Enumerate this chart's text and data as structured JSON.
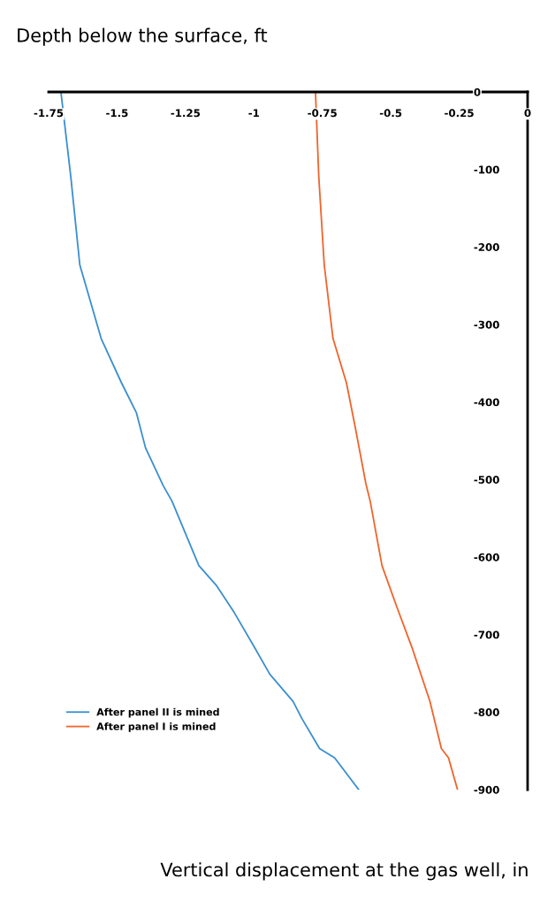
{
  "chart_data": {
    "type": "line",
    "xlabel": "Vertical displacement at the gas well, in",
    "ylabel": "Depth below the surface, ft",
    "xlim": [
      -1.75,
      0
    ],
    "xticks": [
      -1.75,
      -1.5,
      -1.25,
      -1,
      -0.75,
      -0.5,
      -0.25,
      0
    ],
    "ylim": [
      -900,
      0
    ],
    "yticks": [
      0,
      -100,
      -200,
      -300,
      -400,
      -500,
      -600,
      -700,
      -800,
      -900
    ],
    "grid": false,
    "legend": "bottom left",
    "marker": "none",
    "line_style": "solid",
    "series": [
      {
        "name": "After panel II is mined",
        "color": "#3a8fd0",
        "x": [
          -1.705,
          -1.669,
          -1.636,
          -1.558,
          -1.484,
          -1.429,
          -1.396,
          -1.331,
          -1.299,
          -1.201,
          -1.136,
          -1.071,
          -0.997,
          -0.942,
          -0.857,
          -0.825,
          -0.76,
          -0.705,
          -0.617
        ],
        "values": [
          0,
          -109,
          -223,
          -318,
          -375,
          -414,
          -459,
          -508,
          -528,
          -611,
          -637,
          -672,
          -717,
          -751,
          -786,
          -808,
          -847,
          -859,
          -900
        ]
      },
      {
        "name": "After panel I is mined",
        "color": "#f0642a",
        "x": [
          -0.775,
          -0.763,
          -0.743,
          -0.711,
          -0.662,
          -0.63,
          -0.591,
          -0.575,
          -0.532,
          -0.477,
          -0.422,
          -0.357,
          -0.315,
          -0.289,
          -0.256
        ],
        "values": [
          0,
          -109,
          -223,
          -318,
          -375,
          -432,
          -505,
          -528,
          -611,
          -665,
          -717,
          -786,
          -847,
          -859,
          -900
        ]
      }
    ]
  }
}
